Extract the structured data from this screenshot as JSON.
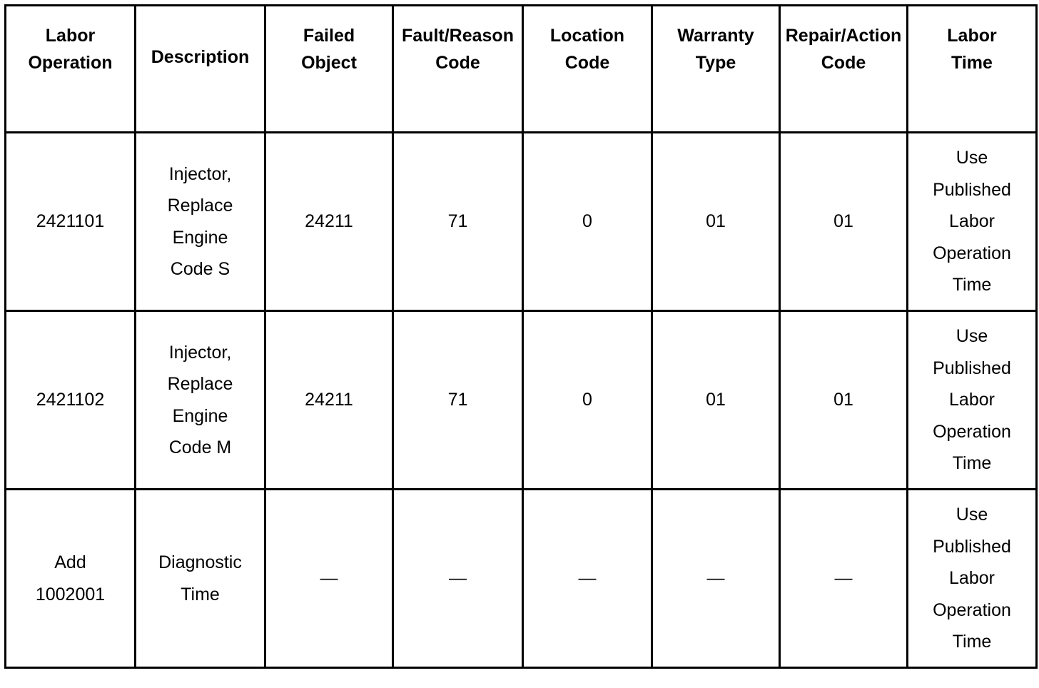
{
  "headers": [
    [
      "Labor",
      "Operation"
    ],
    [
      "Description"
    ],
    [
      "Failed",
      "Object"
    ],
    [
      "Fault/Reason",
      "Code"
    ],
    [
      "Location",
      "Code"
    ],
    [
      "Warranty",
      "Type"
    ],
    [
      "Repair/Action",
      "Code"
    ],
    [
      "Labor",
      "Time"
    ]
  ],
  "rows": [
    [
      [
        "2421101"
      ],
      [
        "Injector,",
        "Replace",
        "Engine",
        "Code S"
      ],
      [
        "24211"
      ],
      [
        "71"
      ],
      [
        "0"
      ],
      [
        "01"
      ],
      [
        "01"
      ],
      [
        "Use",
        "Published",
        "Labor",
        "Operation",
        "Time"
      ]
    ],
    [
      [
        "2421102"
      ],
      [
        "Injector,",
        "Replace",
        "Engine",
        "Code M"
      ],
      [
        "24211"
      ],
      [
        "71"
      ],
      [
        "0"
      ],
      [
        "01"
      ],
      [
        "01"
      ],
      [
        "Use",
        "Published",
        "Labor",
        "Operation",
        "Time"
      ]
    ],
    [
      [
        "Add",
        "1002001"
      ],
      [
        "Diagnostic",
        "Time"
      ],
      [
        "—"
      ],
      [
        "—"
      ],
      [
        "—"
      ],
      [
        "—"
      ],
      [
        "—"
      ],
      [
        "Use",
        "Published",
        "Labor",
        "Operation",
        "Time"
      ]
    ]
  ]
}
